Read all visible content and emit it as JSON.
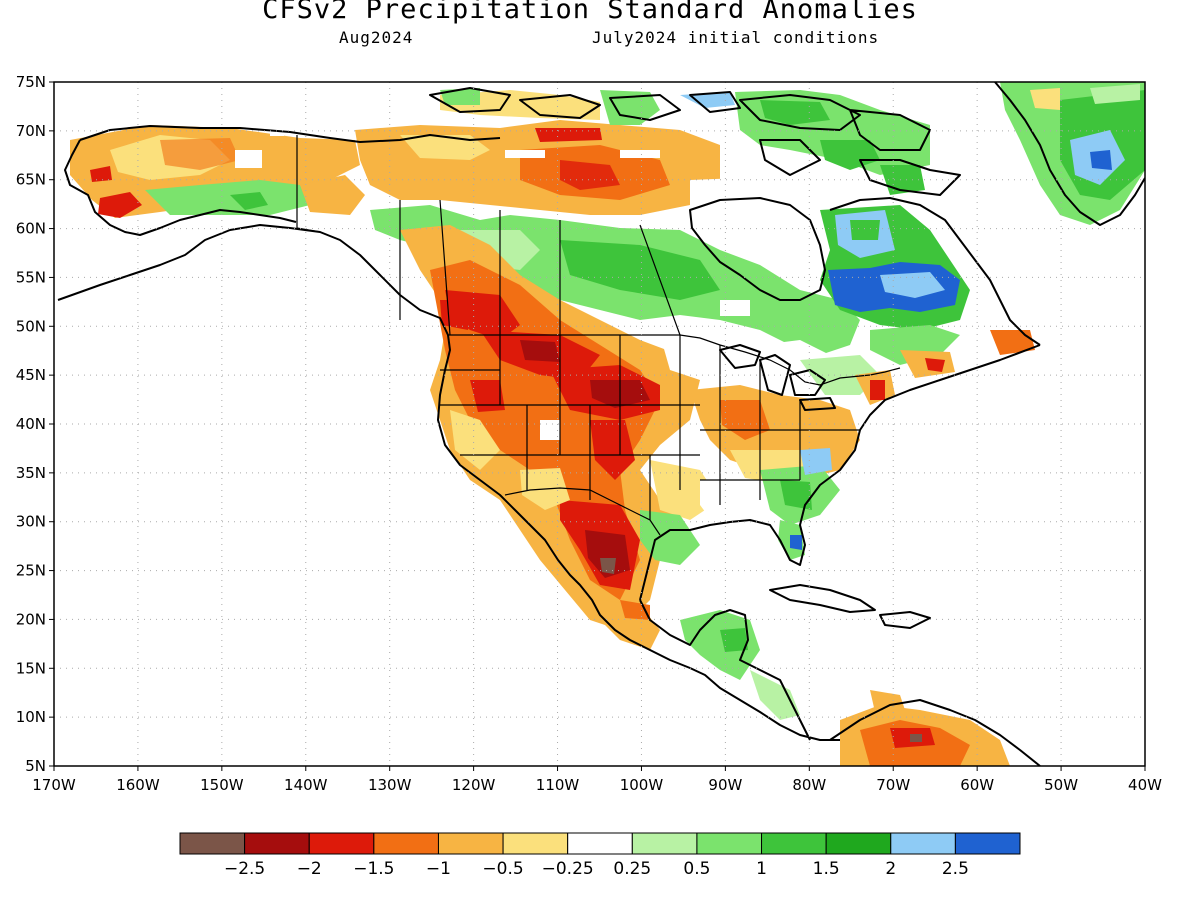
{
  "title": "CFSv2 Precipitation Standard Anomalies",
  "subtitle_left": "Aug2024",
  "subtitle_right": "July2024 initial conditions",
  "lat_labels": [
    "75N",
    "70N",
    "65N",
    "60N",
    "55N",
    "50N",
    "45N",
    "40N",
    "35N",
    "30N",
    "25N",
    "20N",
    "15N",
    "10N",
    "5N"
  ],
  "lon_labels": [
    "170W",
    "160W",
    "150W",
    "140W",
    "130W",
    "120W",
    "110W",
    "100W",
    "90W",
    "80W",
    "70W",
    "60W",
    "50W",
    "40W"
  ],
  "colorbar": {
    "colors": [
      "#7b5548",
      "#a50d0d",
      "#dd1a0a",
      "#f26f14",
      "#f7b443",
      "#fbe07c",
      "#ffffff",
      "#b8f2a4",
      "#7be36d",
      "#3ec43b",
      "#1fa81e",
      "#8ecbf5",
      "#1f62d1"
    ],
    "labels": [
      "−2.5",
      "−2",
      "−1.5",
      "−1",
      "−0.5",
      "−0.25",
      "0.25",
      "0.5",
      "1",
      "1.5",
      "2",
      "2.5"
    ]
  },
  "map": {
    "projection": "equirectangular",
    "lon_range": [
      -170,
      -40
    ],
    "lat_range": [
      5,
      75
    ],
    "variable": "precipitation standard anomaly"
  }
}
